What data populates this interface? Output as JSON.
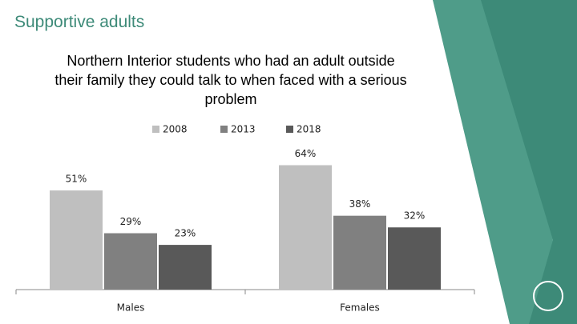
{
  "slide_title": "Supportive adults",
  "chart_data": {
    "type": "bar",
    "title": "Northern Interior students who had an adult outside their family they could talk to when faced with a serious problem",
    "categories": [
      "Males",
      "Females"
    ],
    "series": [
      {
        "name": "2008",
        "color": "#bfbfbf",
        "values": [
          51,
          64
        ],
        "value_labels": [
          "51%",
          "64%"
        ]
      },
      {
        "name": "2013",
        "color": "#808080",
        "values": [
          29,
          38
        ],
        "value_labels": [
          "29%",
          "38%"
        ]
      },
      {
        "name": "2018",
        "color": "#595959",
        "values": [
          23,
          32
        ],
        "value_labels": [
          "23%",
          "32%"
        ]
      }
    ],
    "legend": "top"
  }
}
